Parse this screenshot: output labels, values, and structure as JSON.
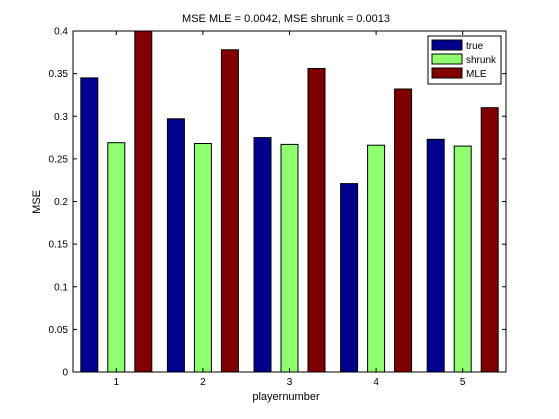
{
  "chart_data": {
    "type": "bar",
    "title": "MSE MLE = 0.0042, MSE shrunk = 0.0013",
    "xlabel": "playernumber",
    "ylabel": "MSE",
    "categories": [
      "1",
      "2",
      "3",
      "4",
      "5"
    ],
    "ylim": [
      0,
      0.4
    ],
    "yticks": [
      "0",
      "0.05",
      "0.1",
      "0.15",
      "0.2",
      "0.25",
      "0.3",
      "0.35",
      "0.4"
    ],
    "grid": false,
    "legend_position": "top-right",
    "series": [
      {
        "name": "true",
        "color": "#00008f",
        "values": [
          0.345,
          0.297,
          0.275,
          0.221,
          0.273
        ]
      },
      {
        "name": "shrunk",
        "color": "#8fff70",
        "values": [
          0.269,
          0.268,
          0.267,
          0.266,
          0.265
        ]
      },
      {
        "name": "MLE",
        "color": "#800000",
        "values": [
          0.4,
          0.378,
          0.356,
          0.332,
          0.31
        ]
      }
    ]
  }
}
